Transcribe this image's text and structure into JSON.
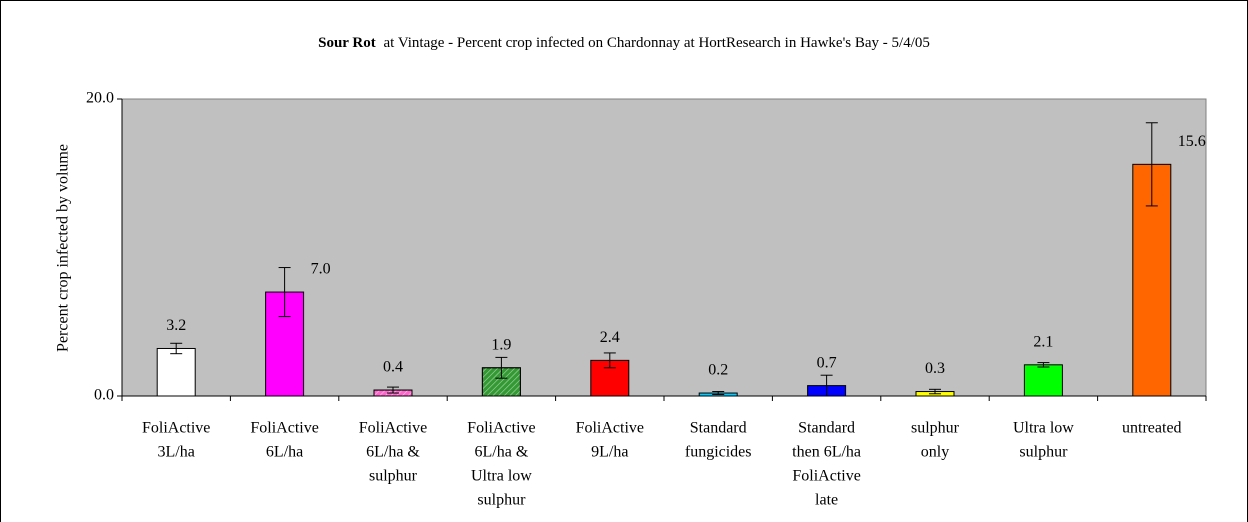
{
  "chart_data": {
    "type": "bar",
    "title": [
      "Sour Rot",
      "at Vintage - Percent crop infected on Chardonnay at HortResearch in Hawke's Bay - 5/4/05"
    ],
    "y_label": "Percent crop infected by volume",
    "categories": [
      [
        "FoliActive",
        "3L/ha"
      ],
      [
        "FoliActive",
        "6L/ha"
      ],
      [
        "FoliActive",
        "6L/ha &",
        "sulphur"
      ],
      [
        "FoliActive",
        "6L/ha &",
        "Ultra low",
        "sulphur"
      ],
      [
        "FoliActive",
        "9L/ha"
      ],
      [
        "Standard",
        "fungicides"
      ],
      [
        "Standard",
        "then 6L/ha",
        "FoliActive",
        "late"
      ],
      [
        "sulphur",
        "only"
      ],
      [
        "Ultra low",
        "sulphur"
      ],
      [
        "untreated"
      ]
    ],
    "values": [
      3.2,
      7.0,
      0.4,
      1.9,
      2.4,
      0.2,
      0.7,
      0.3,
      2.1,
      15.6
    ],
    "value_labels": [
      "3.2",
      "7.0",
      "0.4",
      "1.9",
      "2.4",
      "0.2",
      "0.7",
      "0.3",
      "2.1",
      "15.6"
    ],
    "errors": [
      0.35,
      1.65,
      0.2,
      0.7,
      0.5,
      0.1,
      0.7,
      0.15,
      0.15,
      2.8
    ],
    "colors": [
      "#ffffff",
      "#ff00ff",
      "#ff66cc",
      "#339933",
      "#ff0000",
      "#00ccff",
      "#0000ff",
      "#ffff00",
      "#00ff00",
      "#ff6600"
    ],
    "hatched": [
      false,
      false,
      true,
      true,
      false,
      false,
      false,
      false,
      false,
      false
    ],
    "ylim": [
      0,
      20
    ],
    "yticks": [
      {
        "value": 0,
        "label": "0.0"
      },
      {
        "value": 20,
        "label": "20.0"
      }
    ],
    "plot_background": "#c0c0c0"
  }
}
